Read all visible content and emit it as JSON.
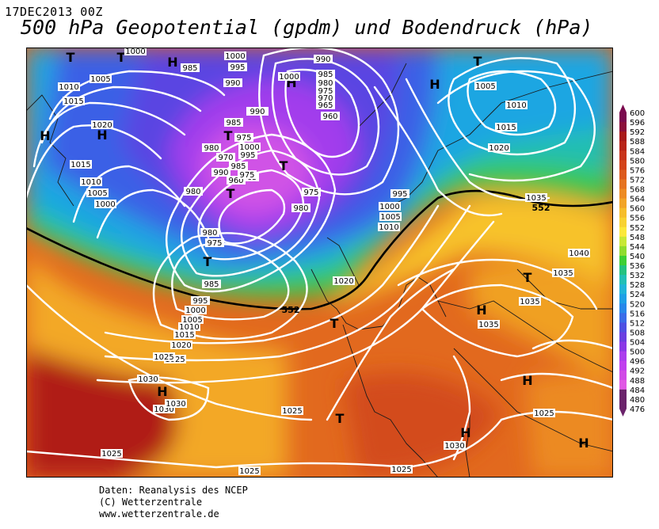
{
  "date_label": "17DEC2013 00Z",
  "title": "500 hPa Geopotential (gpdm) und Bodendruck (hPa)",
  "credits": [
    "Daten: Reanalysis des NCEP",
    "(C) Wetterzentrale",
    "www.wetterzentrale.de"
  ],
  "colors": {
    "ramp": [
      "#7a0a4e",
      "#8b0f3a",
      "#a81a1a",
      "#b82418",
      "#c8331a",
      "#d3431a",
      "#dc5a1c",
      "#e57320",
      "#ed8b22",
      "#f2a426",
      "#f6bd2a",
      "#f8d231",
      "#fbe83a",
      "#c8e836",
      "#8fdc2e",
      "#3ccf34",
      "#22c280",
      "#20bfb6",
      "#1fb4d9",
      "#1e9fe6",
      "#2787ea",
      "#3a6ce8",
      "#4e50e2",
      "#6a3fe0",
      "#8a38e6",
      "#ab3ded",
      "#c03fee",
      "#d04ae6",
      "#e058e4",
      "#6b236b"
    ],
    "isobar": "#ffffff",
    "contour_552": "#000000"
  },
  "color_scale": {
    "labels": [
      "600",
      "596",
      "592",
      "588",
      "584",
      "580",
      "576",
      "572",
      "568",
      "564",
      "560",
      "556",
      "552",
      "548",
      "544",
      "540",
      "536",
      "532",
      "528",
      "524",
      "520",
      "516",
      "512",
      "508",
      "504",
      "500",
      "496",
      "492",
      "488",
      "484",
      "480",
      "476"
    ]
  },
  "map": {
    "contour_label": "552",
    "pressure_centers": [
      "T",
      "T",
      "H",
      "H",
      "H",
      "H",
      "T",
      "T",
      "T",
      "T",
      "H",
      "T",
      "H",
      "T",
      "H",
      "H",
      "T",
      "T",
      "H",
      "H"
    ],
    "isobar_labels": [
      "1000",
      "1005",
      "1010",
      "1015",
      "1020",
      "1015",
      "1010",
      "1005",
      "1000",
      "1000",
      "995",
      "990",
      "985",
      "980",
      "975",
      "970",
      "965",
      "960",
      "1000",
      "995",
      "990",
      "985",
      "980",
      "975",
      "990",
      "985",
      "980",
      "975",
      "970",
      "965",
      "960",
      "985",
      "980",
      "975",
      "980",
      "975",
      "995",
      "1000",
      "1005",
      "1010",
      "1015",
      "1020",
      "1025",
      "1030",
      "1030",
      "1025",
      "1025",
      "1025",
      "1025",
      "1020",
      "1030",
      "1035",
      "1035",
      "1040",
      "1035",
      "1025",
      "1005",
      "1010",
      "1015",
      "1020",
      "995",
      "1000",
      "1005",
      "1010",
      "1000",
      "990",
      "985",
      "1035",
      "1030",
      "1025"
    ]
  }
}
